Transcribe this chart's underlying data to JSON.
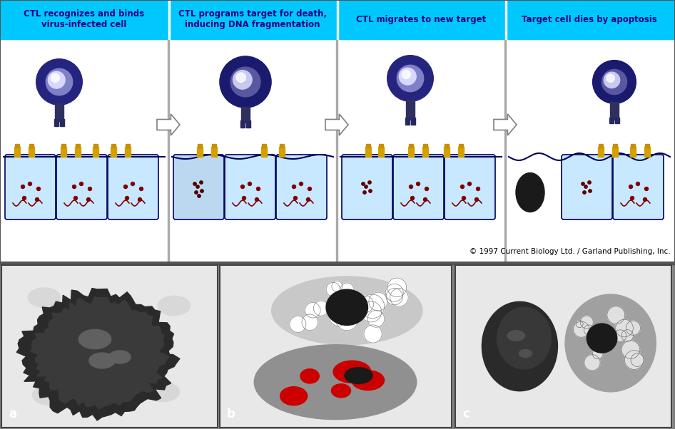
{
  "title_texts": [
    "CTL recognizes and binds\nvirus-infected cell",
    "CTL programs target for death,\ninducing DNA fragmentation",
    "CTL migrates to new target",
    "Target cell dies by apoptosis"
  ],
  "header_bg": "#00C8FF",
  "header_text_color": "#1A0080",
  "diagram_bg": "#FFFFFF",
  "bottom_bg": "#000000",
  "cell_bg": "#C8E8FF",
  "cell_border": "#000080",
  "ctl_body_outer": "#1A1A6E",
  "ctl_body_inner": "#9090E0",
  "ctl_nucleus_outer": "#3030A0",
  "ctl_nucleus_inner": "#E0E0FF",
  "receptor_color": "#404080",
  "target_marker_color": "#D4A000",
  "dot_color": "#800000",
  "squiggle_color": "#800000",
  "arrow_color": "#FFFFFF",
  "arrow_border": "#000000",
  "copyright_text": "© 1997 Current Biology Ltd. / Garland Publishing, Inc.",
  "copyright_color": "#000000",
  "bottom_label_a": "a",
  "bottom_label_b": "b",
  "bottom_label_c": "c",
  "panel_border_color": "#888888",
  "micro_bg_color": "#CCCCCC"
}
